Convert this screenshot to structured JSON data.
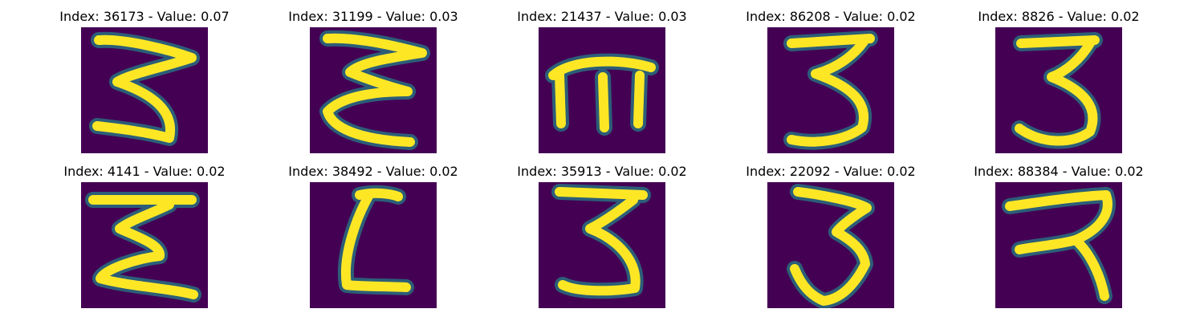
{
  "chart_data": {
    "type": "image_grid",
    "rows": 2,
    "cols": 5,
    "colormap": "viridis",
    "colors": {
      "background": "#440154",
      "stroke_edge": "#21918c",
      "stroke_core": "#fde725"
    },
    "panels": [
      {
        "index": 36173,
        "value": 0.07,
        "title": "Index: 36173 - Value: 0.07"
      },
      {
        "index": 31199,
        "value": 0.03,
        "title": "Index: 31199 - Value: 0.03"
      },
      {
        "index": 21437,
        "value": 0.03,
        "title": "Index: 21437 - Value: 0.03"
      },
      {
        "index": 86208,
        "value": 0.02,
        "title": "Index: 86208 - Value: 0.02"
      },
      {
        "index": 8826,
        "value": 0.02,
        "title": "Index: 8826 - Value: 0.02"
      },
      {
        "index": 4141,
        "value": 0.02,
        "title": "Index: 4141 - Value: 0.02"
      },
      {
        "index": 38492,
        "value": 0.02,
        "title": "Index: 38492 - Value: 0.02"
      },
      {
        "index": 35913,
        "value": 0.02,
        "title": "Index: 35913 - Value: 0.02"
      },
      {
        "index": 22092,
        "value": 0.02,
        "title": "Index: 22092 - Value: 0.02"
      },
      {
        "index": 88384,
        "value": 0.02,
        "title": "Index: 88384 - Value: 0.02"
      }
    ]
  }
}
